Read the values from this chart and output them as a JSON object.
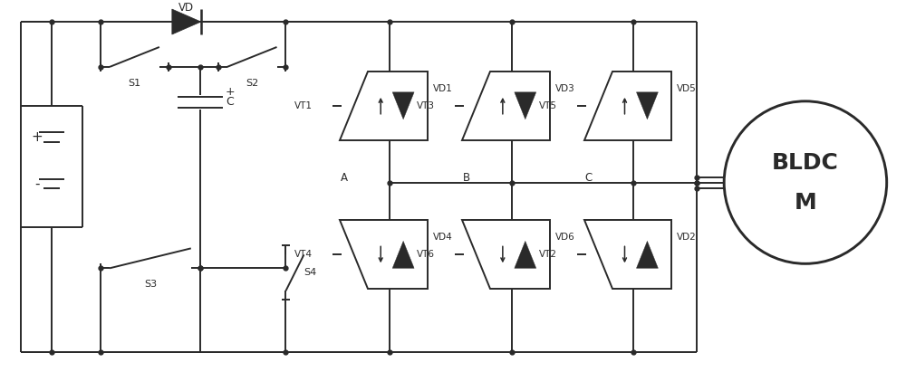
{
  "bg_color": "#ffffff",
  "line_color": "#2a2a2a",
  "line_width": 1.4,
  "fig_width": 10.0,
  "fig_height": 4.11,
  "igbt_labels_top": [
    [
      "VT1",
      "VD1"
    ],
    [
      "VT3",
      "VD3"
    ],
    [
      "VT5",
      "VD5"
    ]
  ],
  "igbt_labels_bot": [
    [
      "VT4",
      "VD4"
    ],
    [
      "VT6",
      "VD6"
    ],
    [
      "VT2",
      "VD2"
    ]
  ],
  "phase_labels": [
    "A",
    "B",
    "C"
  ],
  "motor_text": [
    "BLDC",
    "M"
  ],
  "switch_labels": [
    "S1",
    "S2",
    "S3",
    "S4"
  ],
  "cap_label": "C",
  "cap_plus": "+",
  "batt_plus": "+",
  "batt_minus": "-",
  "vd_label": "VD"
}
